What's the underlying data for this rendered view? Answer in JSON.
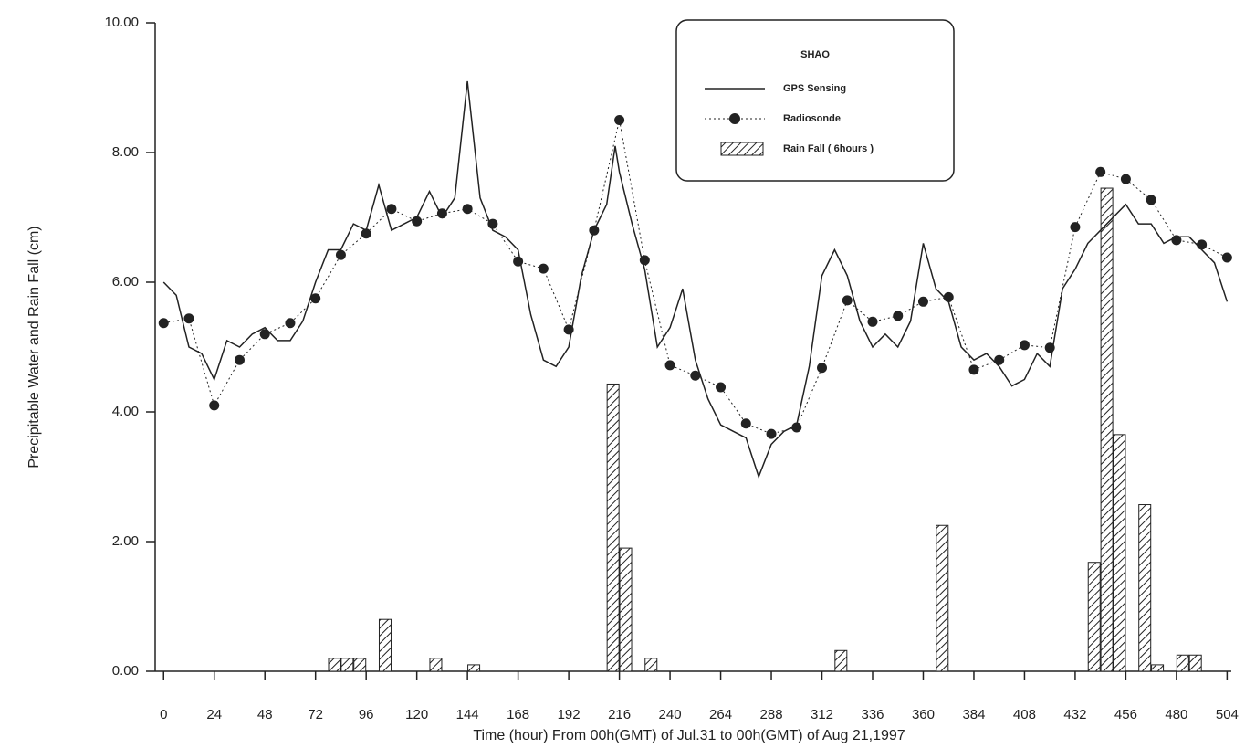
{
  "chart_data": {
    "type": "line",
    "xlabel": "Time (hour) From 00h(GMT) of Jul.31 to 00h(GMT) of Aug 21,1997",
    "ylabel": "Precipitable Water and Rain Fall (cm)",
    "legend_title": "SHAO",
    "legend_position": "upper right",
    "xlim": [
      -4,
      506
    ],
    "ylim": [
      0,
      10
    ],
    "xticks": [
      0,
      24,
      48,
      72,
      96,
      120,
      144,
      168,
      192,
      216,
      240,
      264,
      288,
      312,
      336,
      360,
      384,
      408,
      432,
      456,
      480,
      504
    ],
    "yticks": [
      {
        "value": 0,
        "label": "0.00"
      },
      {
        "value": 2,
        "label": "2.00"
      },
      {
        "value": 4,
        "label": "4.00"
      },
      {
        "value": 6,
        "label": "6.00"
      },
      {
        "value": 8,
        "label": "8.00"
      },
      {
        "value": 10,
        "label": "10.00"
      }
    ],
    "series": [
      {
        "name": "GPS Sensing",
        "type": "line",
        "color": "#222222",
        "x": [
          0,
          6,
          12,
          18,
          24,
          30,
          36,
          42,
          48,
          54,
          60,
          66,
          72,
          78,
          84,
          90,
          96,
          102,
          108,
          114,
          120,
          126,
          132,
          138,
          144,
          150,
          156,
          162,
          168,
          174,
          180,
          186,
          192,
          198,
          204,
          210,
          214,
          216,
          222,
          228,
          234,
          240,
          246,
          252,
          258,
          264,
          270,
          276,
          282,
          288,
          294,
          300,
          306,
          312,
          318,
          324,
          330,
          336,
          342,
          348,
          354,
          360,
          366,
          372,
          378,
          384,
          390,
          396,
          402,
          408,
          414,
          420,
          426,
          432,
          438,
          444,
          450,
          456,
          462,
          468,
          474,
          480,
          486,
          492,
          498,
          504
        ],
        "values": [
          6.0,
          5.8,
          5.0,
          4.9,
          4.5,
          5.1,
          5.0,
          5.2,
          5.3,
          5.1,
          5.1,
          5.4,
          6.0,
          6.5,
          6.5,
          6.9,
          6.8,
          7.5,
          6.8,
          6.9,
          7.0,
          7.4,
          7.0,
          7.3,
          9.1,
          7.3,
          6.8,
          6.7,
          6.5,
          5.5,
          4.8,
          4.7,
          5.0,
          6.1,
          6.8,
          7.2,
          8.1,
          7.7,
          6.9,
          6.2,
          5.0,
          5.3,
          5.9,
          4.8,
          4.2,
          3.8,
          3.7,
          3.6,
          3.0,
          3.5,
          3.7,
          3.8,
          4.7,
          6.1,
          6.5,
          6.1,
          5.4,
          5.0,
          5.2,
          5.0,
          5.4,
          6.6,
          5.9,
          5.7,
          5.0,
          4.8,
          4.9,
          4.7,
          4.4,
          4.5,
          4.9,
          4.7,
          5.9,
          6.2,
          6.6,
          6.8,
          7.0,
          7.2,
          6.9,
          6.9,
          6.6,
          6.7,
          6.7,
          6.5,
          6.3,
          5.7
        ]
      },
      {
        "name": "Radiosonde",
        "type": "dotted",
        "color": "#222222",
        "x": [
          0,
          12,
          24,
          36,
          48,
          60,
          72,
          84,
          96,
          108,
          120,
          132,
          144,
          156,
          168,
          180,
          192,
          204,
          216,
          228,
          240,
          252,
          264,
          276,
          288,
          300,
          312,
          324,
          336,
          348,
          360,
          372,
          384,
          396,
          408,
          420,
          432,
          444,
          456,
          468,
          480,
          492,
          504
        ],
        "values": [
          5.37,
          5.44,
          4.1,
          4.8,
          5.2,
          5.37,
          5.75,
          6.42,
          6.75,
          7.13,
          6.94,
          7.06,
          7.13,
          6.9,
          6.32,
          6.21,
          5.27,
          6.8,
          8.5,
          6.34,
          4.72,
          4.56,
          4.38,
          3.82,
          3.66,
          3.76,
          4.68,
          5.72,
          5.39,
          5.48,
          5.7,
          5.77,
          4.65,
          4.8,
          5.03,
          4.99,
          6.85,
          7.7,
          7.59,
          7.27,
          6.65,
          6.58,
          6.38
        ]
      },
      {
        "name": "Rain Fall ( 6hours )",
        "type": "bar",
        "color": "#222222",
        "x": [
          81,
          87,
          93,
          105,
          129,
          147,
          213,
          219,
          231,
          321,
          369,
          441,
          447,
          453,
          465,
          471,
          483,
          489
        ],
        "values": [
          0.2,
          0.2,
          0.2,
          0.8,
          0.2,
          0.1,
          4.43,
          1.9,
          0.2,
          0.32,
          2.25,
          1.68,
          7.45,
          3.65,
          2.57,
          0.1,
          0.25,
          0.25
        ]
      }
    ]
  }
}
